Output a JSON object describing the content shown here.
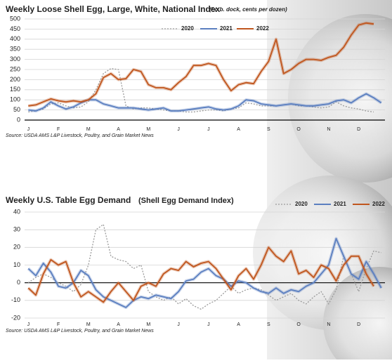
{
  "chart_data": [
    {
      "type": "line",
      "title": "Weekly Loose Shell Egg, Large, White, National Index",
      "subtitle": "(f.o.b. dock, cents per dozen)",
      "source": "Source: USDA AMS L&P Livestock, Poultry, and Grain Market News",
      "categories": [
        "J",
        null,
        null,
        null,
        "F",
        null,
        null,
        null,
        "M",
        null,
        null,
        null,
        "A",
        null,
        null,
        null,
        "M",
        null,
        null,
        null,
        "J",
        null,
        null,
        null,
        "J",
        null,
        null,
        null,
        "A",
        null,
        null,
        null,
        "S",
        null,
        null,
        null,
        "O",
        null,
        null,
        null,
        "N",
        null,
        null,
        null,
        "D",
        null,
        null,
        null
      ],
      "ylim": [
        0,
        500
      ],
      "yticks": [
        0,
        50,
        100,
        150,
        200,
        250,
        300,
        350,
        400,
        450,
        500
      ],
      "grid": true,
      "series": [
        {
          "name": "2020",
          "color": "#9a9a9a",
          "dashed": true,
          "values": [
            40,
            45,
            55,
            80,
            85,
            70,
            60,
            65,
            90,
            150,
            230,
            255,
            250,
            70,
            55,
            60,
            60,
            55,
            50,
            45,
            45,
            40,
            40,
            45,
            50,
            50,
            45,
            55,
            60,
            85,
            80,
            70,
            70,
            70,
            75,
            80,
            70,
            70,
            65,
            60,
            65,
            90,
            70,
            60,
            55,
            45,
            40,
            null
          ]
        },
        {
          "name": "2021",
          "color": "#5b7fc0",
          "dashed": false,
          "values": [
            50,
            45,
            60,
            90,
            70,
            55,
            65,
            85,
            100,
            100,
            80,
            70,
            60,
            60,
            60,
            55,
            50,
            55,
            60,
            45,
            45,
            50,
            55,
            60,
            65,
            55,
            50,
            55,
            70,
            100,
            95,
            80,
            75,
            70,
            75,
            80,
            75,
            70,
            70,
            75,
            80,
            95,
            100,
            85,
            110,
            130,
            110,
            85
          ]
        },
        {
          "name": "2022",
          "color": "#c0561e",
          "dashed": false,
          "values": [
            70,
            75,
            90,
            105,
            95,
            90,
            95,
            90,
            100,
            130,
            210,
            230,
            200,
            205,
            250,
            240,
            175,
            160,
            160,
            150,
            185,
            215,
            270,
            270,
            280,
            270,
            200,
            145,
            175,
            185,
            180,
            240,
            290,
            400,
            230,
            250,
            280,
            300,
            300,
            295,
            310,
            320,
            360,
            420,
            470,
            480,
            475,
            null
          ]
        }
      ]
    },
    {
      "type": "line",
      "title": "Weekly U.S. Table Egg Demand",
      "subtitle": "(Shell Egg Demand Index)",
      "source": "Source: USDA AMS L&P Livestock, Poultry, and Grain Market News",
      "categories": [
        "J",
        null,
        null,
        null,
        "F",
        null,
        null,
        null,
        "M",
        null,
        null,
        null,
        "A",
        null,
        null,
        null,
        "M",
        null,
        null,
        null,
        "J",
        null,
        null,
        null,
        "J",
        null,
        null,
        null,
        "A",
        null,
        null,
        null,
        "S",
        null,
        null,
        null,
        "O",
        null,
        null,
        null,
        "N",
        null,
        null,
        null,
        "D",
        null,
        null,
        null
      ],
      "ylim": [
        -20,
        40
      ],
      "yticks": [
        -20,
        -10,
        0,
        10,
        20,
        30,
        40
      ],
      "grid": true,
      "series": [
        {
          "name": "2020",
          "color": "#9a9a9a",
          "dashed": true,
          "values": [
            0,
            3,
            5,
            3,
            0,
            -2,
            -5,
            -1,
            10,
            30,
            33,
            15,
            13,
            12,
            8,
            10,
            -5,
            -8,
            -10,
            -8,
            -12,
            -9,
            -13,
            -15,
            -12,
            -10,
            -6,
            -2,
            -6,
            -4,
            -3,
            -4,
            -7,
            -10,
            -8,
            -6,
            -10,
            -12,
            -8,
            -5,
            -12,
            -4,
            15,
            5,
            -5,
            8,
            18,
            17
          ]
        },
        {
          "name": "2021",
          "color": "#5b7fc0",
          "dashed": false,
          "values": [
            8,
            4,
            11,
            6,
            -2,
            -3,
            0,
            7,
            4,
            -4,
            -8,
            -10,
            -12,
            -14,
            -10,
            -8,
            -9,
            -7,
            -8,
            -9,
            -5,
            1,
            2,
            6,
            8,
            4,
            2,
            -2,
            1,
            0,
            -3,
            -5,
            -6,
            -3,
            -6,
            -4,
            -5,
            -2,
            0,
            5,
            10,
            25,
            15,
            5,
            2,
            12,
            5,
            -3
          ]
        },
        {
          "name": "2022",
          "color": "#c0561e",
          "dashed": false,
          "values": [
            -3,
            -7,
            5,
            13,
            10,
            12,
            0,
            -8,
            -5,
            -8,
            -11,
            -5,
            0,
            -5,
            -10,
            -2,
            0,
            -2,
            5,
            8,
            7,
            12,
            9,
            11,
            12,
            8,
            2,
            -4,
            4,
            8,
            2,
            10,
            20,
            15,
            12,
            18,
            5,
            7,
            3,
            10,
            8,
            1,
            10,
            15,
            15,
            5,
            -2,
            null
          ]
        }
      ]
    }
  ]
}
